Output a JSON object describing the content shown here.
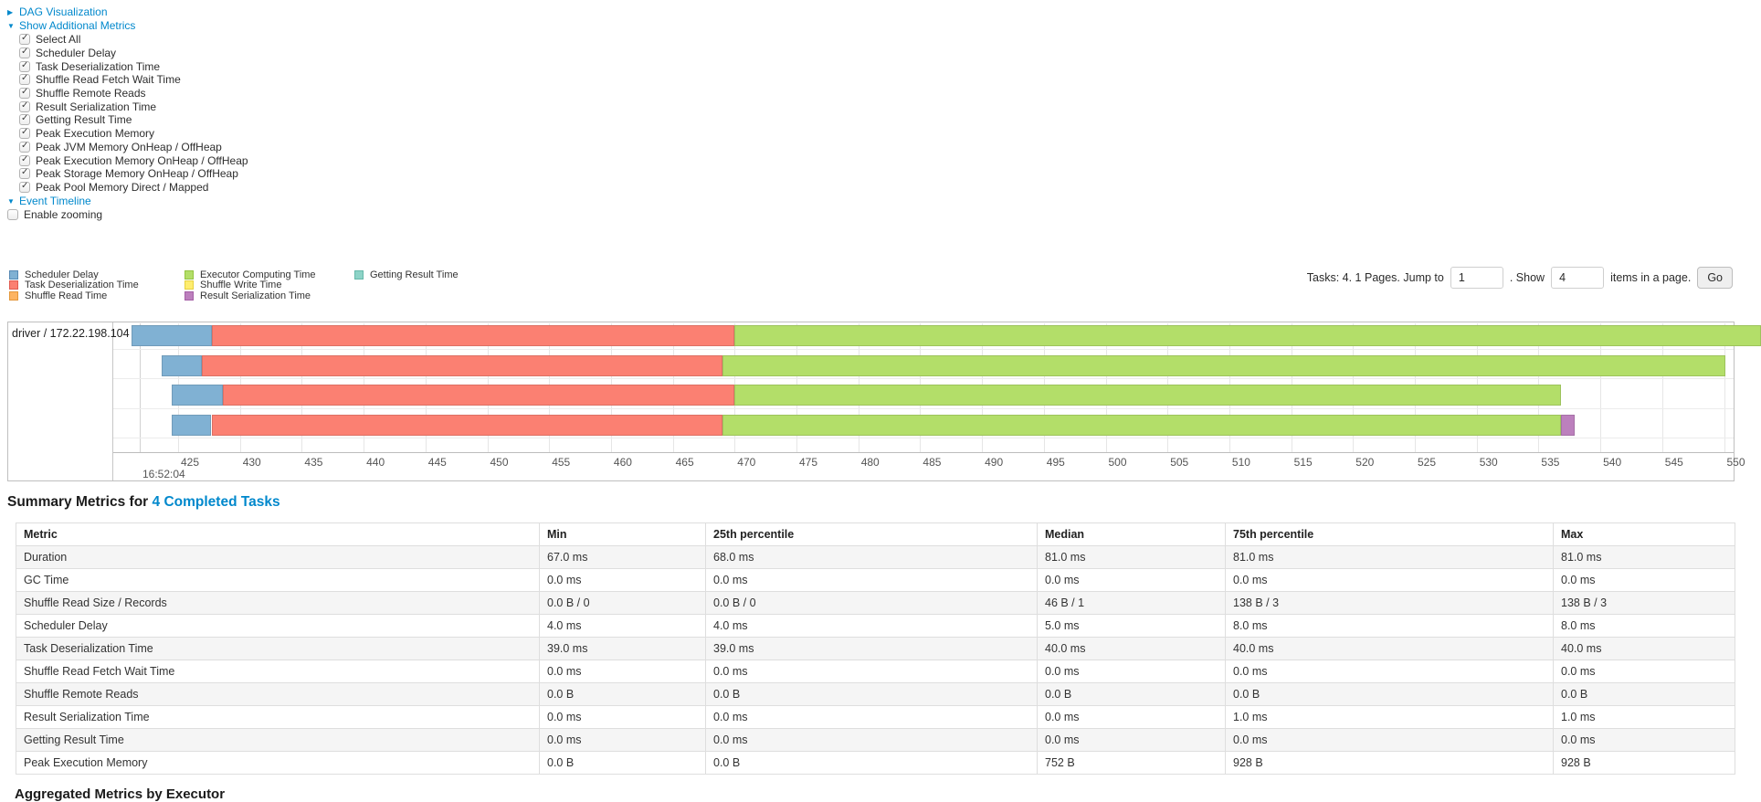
{
  "accent": {
    "link_color": "#0088cc"
  },
  "controls": {
    "dag": {
      "label": "DAG Visualization",
      "collapsed": true
    },
    "metrics": {
      "label": "Show Additional Metrics",
      "items": [
        {
          "label": "Select All",
          "checked": true
        },
        {
          "label": "Scheduler Delay",
          "checked": true
        },
        {
          "label": "Task Deserialization Time",
          "checked": true
        },
        {
          "label": "Shuffle Read Fetch Wait Time",
          "checked": true
        },
        {
          "label": "Shuffle Remote Reads",
          "checked": true
        },
        {
          "label": "Result Serialization Time",
          "checked": true
        },
        {
          "label": "Getting Result Time",
          "checked": true
        },
        {
          "label": "Peak Execution Memory",
          "checked": true
        },
        {
          "label": "Peak JVM Memory OnHeap / OffHeap",
          "checked": true
        },
        {
          "label": "Peak Execution Memory OnHeap / OffHeap",
          "checked": true
        },
        {
          "label": "Peak Storage Memory OnHeap / OffHeap",
          "checked": true
        },
        {
          "label": "Peak Pool Memory Direct / Mapped",
          "checked": true
        }
      ]
    },
    "event_timeline": {
      "label": "Event Timeline"
    },
    "enable_zooming": {
      "label": "Enable zooming",
      "checked": false
    }
  },
  "timeline": {
    "legend_columns": [
      [
        {
          "key": "scheduler_delay",
          "label": "Scheduler Delay",
          "color": "#80B1D3",
          "border": "#5689b4"
        },
        {
          "key": "task_deserialization",
          "label": "Task Deserialization Time",
          "color": "#FB8072",
          "border": "#e05c50"
        },
        {
          "key": "shuffle_read",
          "label": "Shuffle Read Time",
          "color": "#FDB462",
          "border": "#e3973a"
        }
      ],
      [
        {
          "key": "executor_computing",
          "label": "Executor Computing Time",
          "color": "#B3DE69",
          "border": "#94c43f"
        },
        {
          "key": "shuffle_write",
          "label": "Shuffle Write Time",
          "color": "#FFED6F",
          "border": "#e6d13f"
        },
        {
          "key": "result_serialization",
          "label": "Result Serialization Time",
          "color": "#BC80BD",
          "border": "#a55fa6"
        }
      ],
      [
        {
          "key": "getting_result",
          "label": "Getting Result Time",
          "color": "#8DD3C7",
          "border": "#65b8a9"
        }
      ]
    ],
    "pagination": {
      "summary": "Tasks: 4. 1 Pages. Jump to",
      "jump_value": "1",
      "show_label": ". Show",
      "show_value": "4",
      "items_label": "items in a page.",
      "go_label": "Go"
    },
    "group_label": "driver / 172.22.198.104",
    "axis": {
      "major_label": "16:52:04",
      "tick_start": 425,
      "tick_end": 550,
      "tick_step": 5
    }
  },
  "chart_data": {
    "type": "timeline",
    "title": "Event Timeline",
    "group": "driver / 172.22.198.104",
    "x_unit": "milliseconds within second 16:52:04",
    "x_window": [
      419.7,
      553.0
    ],
    "ticks_ms": [
      425,
      430,
      435,
      440,
      445,
      450,
      455,
      460,
      465,
      470,
      475,
      480,
      485,
      490,
      495,
      500,
      505,
      510,
      515,
      520,
      525,
      530,
      535,
      540,
      545,
      550
    ],
    "tasks": [
      {
        "segments": [
          {
            "phase": "scheduler_delay",
            "start_ms": 421.2,
            "end_ms": 427.7
          },
          {
            "phase": "task_deserialization",
            "start_ms": 427.7,
            "end_ms": 470.0
          },
          {
            "phase": "executor_computing",
            "start_ms": 470.0,
            "end_ms": 553.0
          }
        ]
      },
      {
        "segments": [
          {
            "phase": "scheduler_delay",
            "start_ms": 423.7,
            "end_ms": 426.9
          },
          {
            "phase": "task_deserialization",
            "start_ms": 426.9,
            "end_ms": 469.0
          },
          {
            "phase": "executor_computing",
            "start_ms": 469.0,
            "end_ms": 550.1
          }
        ]
      },
      {
        "segments": [
          {
            "phase": "scheduler_delay",
            "start_ms": 424.5,
            "end_ms": 428.6
          },
          {
            "phase": "task_deserialization",
            "start_ms": 428.6,
            "end_ms": 470.0
          },
          {
            "phase": "executor_computing",
            "start_ms": 470.0,
            "end_ms": 536.8
          }
        ]
      },
      {
        "segments": [
          {
            "phase": "scheduler_delay",
            "start_ms": 424.5,
            "end_ms": 427.7
          },
          {
            "phase": "task_deserialization",
            "start_ms": 427.7,
            "end_ms": 469.0
          },
          {
            "phase": "executor_computing",
            "start_ms": 469.0,
            "end_ms": 536.8
          },
          {
            "phase": "result_serialization",
            "start_ms": 536.8,
            "end_ms": 537.9
          }
        ]
      }
    ]
  },
  "summary": {
    "heading_prefix": "Summary Metrics for",
    "heading_link": "4 Completed Tasks",
    "headers": [
      "Metric",
      "Min",
      "25th percentile",
      "Median",
      "75th percentile",
      "Max"
    ],
    "rows": [
      [
        "Duration",
        "67.0 ms",
        "68.0 ms",
        "81.0 ms",
        "81.0 ms",
        "81.0 ms"
      ],
      [
        "GC Time",
        "0.0 ms",
        "0.0 ms",
        "0.0 ms",
        "0.0 ms",
        "0.0 ms"
      ],
      [
        "Shuffle Read Size / Records",
        "0.0 B / 0",
        "0.0 B / 0",
        "46 B / 1",
        "138 B / 3",
        "138 B / 3"
      ],
      [
        "Scheduler Delay",
        "4.0 ms",
        "4.0 ms",
        "5.0 ms",
        "8.0 ms",
        "8.0 ms"
      ],
      [
        "Task Deserialization Time",
        "39.0 ms",
        "39.0 ms",
        "40.0 ms",
        "40.0 ms",
        "40.0 ms"
      ],
      [
        "Shuffle Read Fetch Wait Time",
        "0.0 ms",
        "0.0 ms",
        "0.0 ms",
        "0.0 ms",
        "0.0 ms"
      ],
      [
        "Shuffle Remote Reads",
        "0.0 B",
        "0.0 B",
        "0.0 B",
        "0.0 B",
        "0.0 B"
      ],
      [
        "Result Serialization Time",
        "0.0 ms",
        "0.0 ms",
        "0.0 ms",
        "1.0 ms",
        "1.0 ms"
      ],
      [
        "Getting Result Time",
        "0.0 ms",
        "0.0 ms",
        "0.0 ms",
        "0.0 ms",
        "0.0 ms"
      ],
      [
        "Peak Execution Memory",
        "0.0 B",
        "0.0 B",
        "752 B",
        "928 B",
        "928 B"
      ]
    ]
  },
  "next_section": {
    "label": "Aggregated Metrics by Executor"
  }
}
